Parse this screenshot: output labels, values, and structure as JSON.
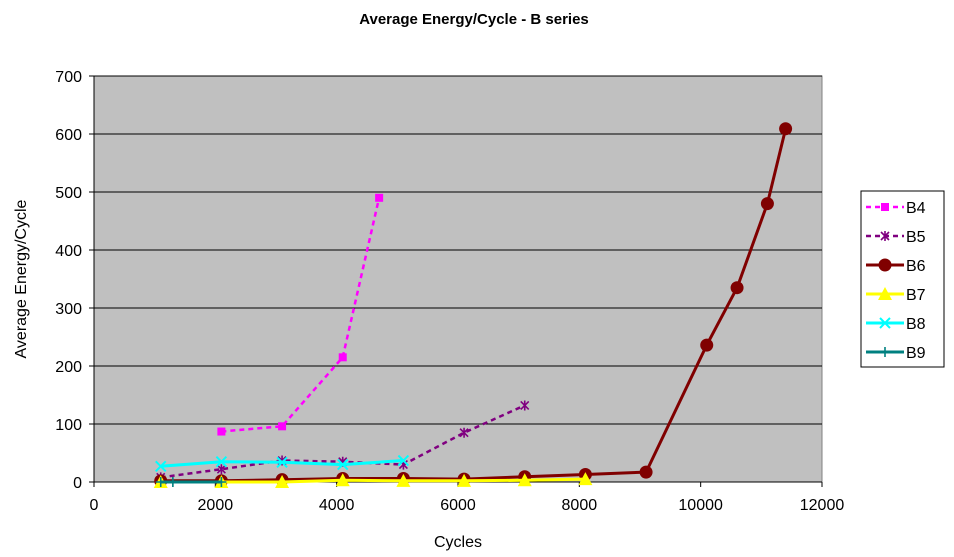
{
  "chart_data": {
    "type": "line",
    "title": "Average Energy/Cycle - B series",
    "xlabel": "Cycles",
    "ylabel": "Average Energy/Cycle",
    "xlim": [
      0,
      12000
    ],
    "ylim": [
      0,
      700
    ],
    "xticks": [
      "0",
      "2000",
      "4000",
      "6000",
      "8000",
      "10000",
      "12000"
    ],
    "yticks": [
      "0",
      "100",
      "200",
      "300",
      "400",
      "500",
      "600",
      "700"
    ],
    "grid": "horizontal",
    "plot_background": "#c0c0c0",
    "legend_position": "right",
    "series": [
      {
        "name": "B4",
        "color": "#ff00ff",
        "dash": "dashed",
        "marker": "square",
        "x": [
          2100,
          3100,
          4100,
          4700
        ],
        "y": [
          87,
          96,
          215,
          490
        ]
      },
      {
        "name": "B5",
        "color": "#800080",
        "dash": "dashed",
        "marker": "star",
        "x": [
          1100,
          2100,
          3100,
          4100,
          5100,
          6100,
          7100
        ],
        "y": [
          8,
          22,
          37,
          35,
          30,
          85,
          132
        ]
      },
      {
        "name": "B6",
        "color": "#800000",
        "dash": "solid",
        "marker": "circle",
        "x": [
          1100,
          2100,
          3100,
          4100,
          5100,
          6100,
          7100,
          8100,
          9100,
          10100,
          10600,
          11100,
          11400
        ],
        "y": [
          2,
          2,
          4,
          6,
          6,
          5,
          9,
          13,
          17,
          236,
          335,
          480,
          609
        ]
      },
      {
        "name": "B7",
        "color": "#ffff00",
        "dash": "solid",
        "marker": "triangle",
        "x": [
          1100,
          2100,
          3100,
          4100,
          5100,
          6100,
          7100,
          8100
        ],
        "y": [
          0,
          0,
          0,
          3,
          2,
          2,
          3,
          5
        ]
      },
      {
        "name": "B8",
        "color": "#00ffff",
        "dash": "solid",
        "marker": "x",
        "x": [
          1100,
          2100,
          3100,
          4100,
          5100
        ],
        "y": [
          27,
          35,
          34,
          30,
          37
        ]
      },
      {
        "name": "B9",
        "color": "#008080",
        "dash": "solid",
        "marker": "plus",
        "x": [
          1100,
          1300,
          2100
        ],
        "y": [
          0,
          0,
          0
        ]
      }
    ]
  }
}
